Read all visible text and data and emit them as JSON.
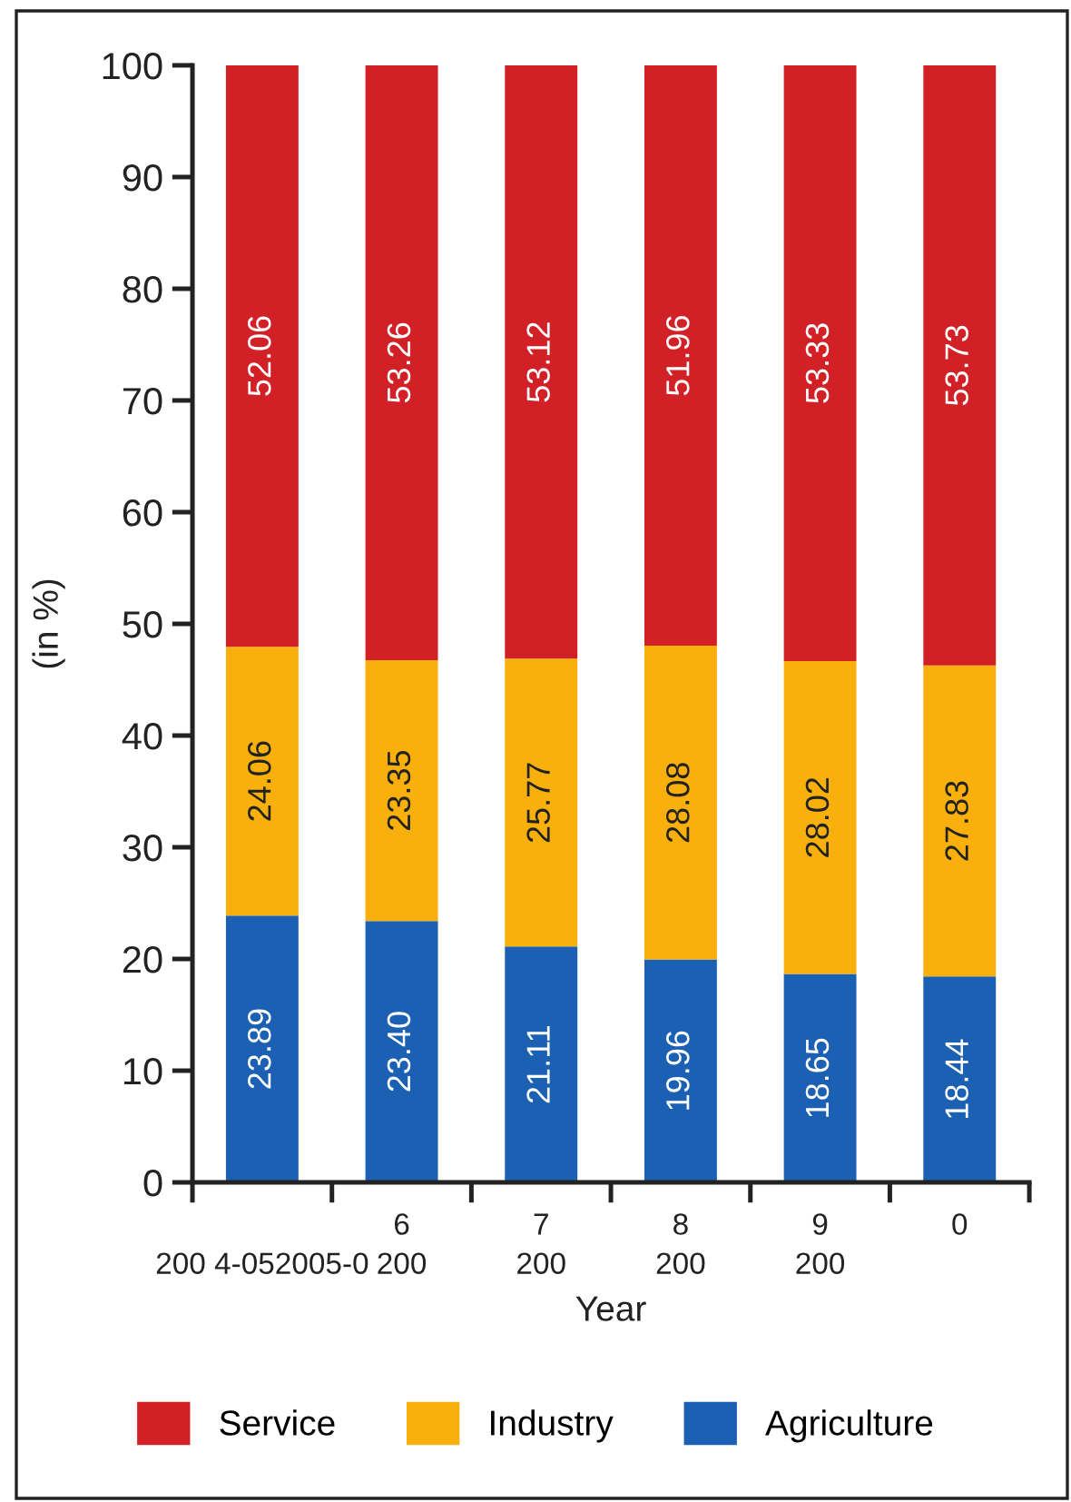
{
  "chart_data": {
    "type": "bar",
    "stacked": true,
    "categories": [
      "\n200 4-052005-0",
      "6\n200",
      "7\n200",
      "8\n200",
      "9\n200",
      "0"
    ],
    "xlabel": "Year",
    "ylabel": "(in %)",
    "ylim": [
      0,
      100
    ],
    "yticks": [
      0,
      10,
      20,
      30,
      40,
      50,
      60,
      70,
      80,
      90,
      100
    ],
    "grid": false,
    "legend": "bottom",
    "series": [
      {
        "name": "Agriculture",
        "color": "#1c60b3",
        "values": [
          23.89,
          23.4,
          21.11,
          19.96,
          18.65,
          18.44
        ],
        "value_labels": [
          "23.89",
          "23.40",
          "21.11",
          "19.96",
          "18.65",
          "18.44"
        ]
      },
      {
        "name": "Industry",
        "color": "#f9b00c",
        "values": [
          24.06,
          23.35,
          25.77,
          28.08,
          28.02,
          27.83
        ],
        "value_labels": [
          "24.06",
          "23.35",
          "25.77",
          "28.08",
          "28.02",
          "27.83"
        ]
      },
      {
        "name": "Service",
        "color": "#d12127",
        "values": [
          52.06,
          53.26,
          53.12,
          51.96,
          53.33,
          53.73
        ],
        "value_labels": [
          "52.06",
          "53.26",
          "53.12",
          "51.96",
          "53.33",
          "53.73"
        ]
      }
    ]
  }
}
